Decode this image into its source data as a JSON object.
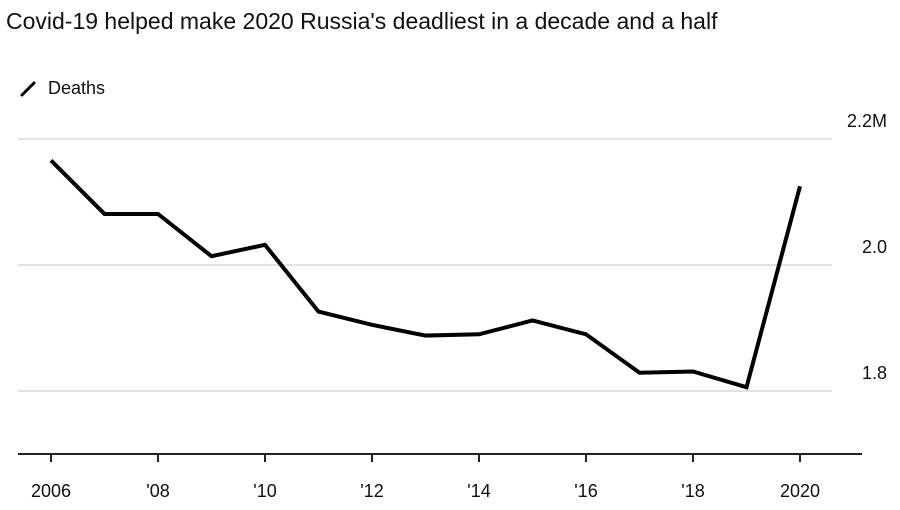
{
  "chart_data": {
    "type": "line",
    "title": "Covid-19 helped make 2020 Russia's deadliest in a decade and a half",
    "legend": [
      "Deaths"
    ],
    "unit_label": "2.2M",
    "x": [
      2006,
      2007,
      2008,
      2009,
      2010,
      2011,
      2012,
      2013,
      2014,
      2015,
      2016,
      2017,
      2018,
      2019,
      2020
    ],
    "series": [
      {
        "name": "Deaths",
        "values": [
          2.166,
          2.081,
          2.081,
          2.014,
          2.032,
          1.926,
          1.905,
          1.888,
          1.89,
          1.912,
          1.89,
          1.829,
          1.831,
          1.806,
          2.125
        ]
      }
    ],
    "xticks": [
      2006,
      2008,
      2010,
      2012,
      2014,
      2016,
      2018,
      2020
    ],
    "xtick_labels": [
      "2006",
      "'08",
      "'10",
      "'12",
      "'14",
      "'16",
      "'18",
      "2020"
    ],
    "yticks": [
      1.8,
      2.0,
      2.2
    ],
    "ytick_labels": [
      "1.8",
      "2.0",
      "2.2M"
    ],
    "ylim": [
      1.7,
      2.2
    ],
    "grid": true,
    "legend_position": "top-left"
  }
}
